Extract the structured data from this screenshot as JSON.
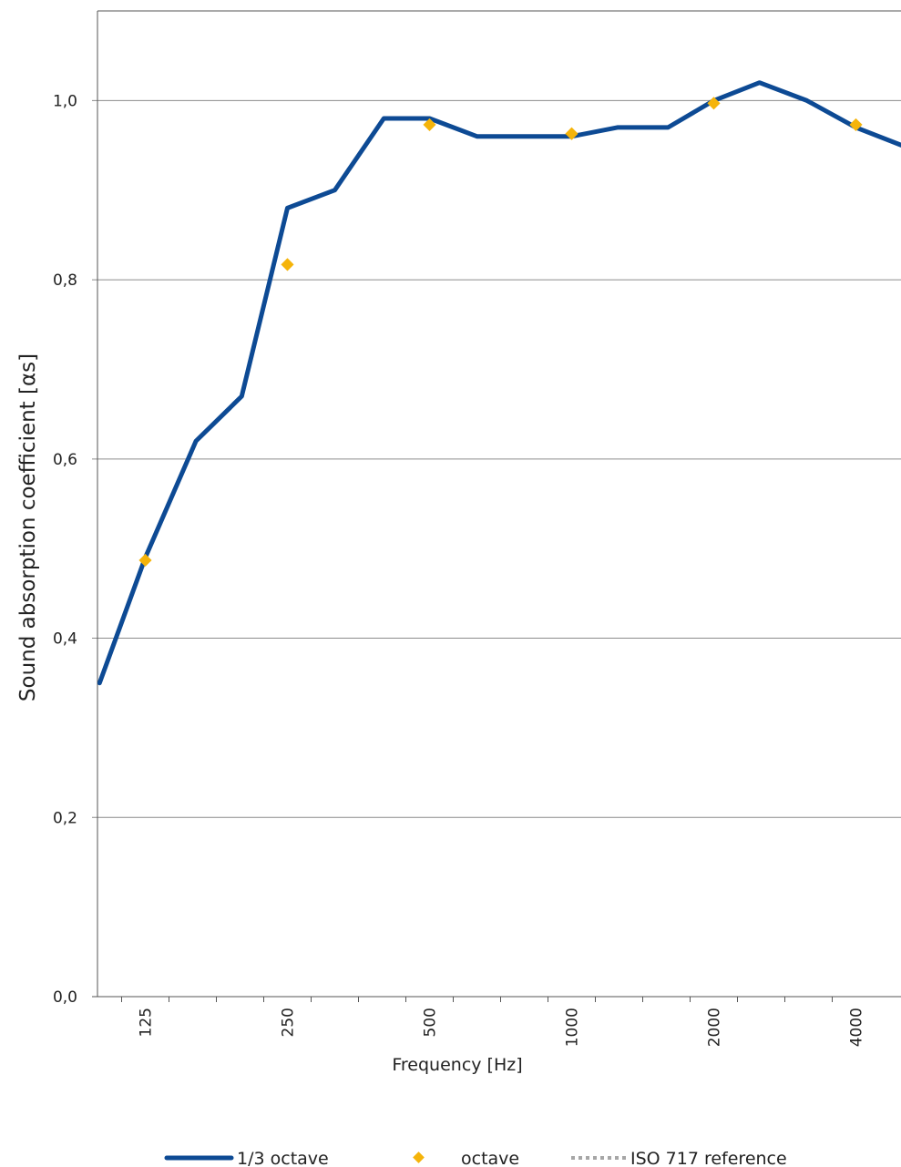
{
  "chart_data": {
    "type": "line",
    "xlabel": "Frequency [Hz]",
    "ylabel": "Sound absorption coefficient [αs]",
    "x_scale": "log",
    "ylim": [
      0,
      1.1
    ],
    "yticks": [
      "0,0",
      "0,2",
      "0,4",
      "0,6",
      "0,8",
      "1,0"
    ],
    "ytick_values": [
      0,
      0.2,
      0.4,
      0.6,
      0.8,
      1.0
    ],
    "xtick_labels": [
      "125",
      "250",
      "500",
      "1000",
      "2000",
      "4000"
    ],
    "xtick_values": [
      125,
      250,
      500,
      1000,
      2000,
      4000
    ],
    "grid": true,
    "legend_position": "bottom",
    "series": [
      {
        "name": "1/3 octave",
        "style": "line",
        "color": "#0D4A94",
        "x": [
          100,
          125,
          160,
          200,
          250,
          315,
          400,
          500,
          630,
          800,
          1000,
          1250,
          1600,
          2000,
          2500,
          3150,
          4000,
          5000
        ],
        "values": [
          0.35,
          0.49,
          0.62,
          0.67,
          0.88,
          0.9,
          0.98,
          0.98,
          0.96,
          0.96,
          0.96,
          0.97,
          0.97,
          1.0,
          1.02,
          1.0,
          0.97,
          0.95
        ]
      },
      {
        "name": "octave",
        "style": "marker",
        "color": "#F5B40A",
        "x": [
          125,
          250,
          500,
          1000,
          2000,
          4000
        ],
        "values": [
          0.487,
          0.817,
          0.973,
          0.963,
          0.997,
          0.973
        ]
      },
      {
        "name": "ISO 717 reference",
        "style": "dotted",
        "color": "#A6A6A6",
        "x": [],
        "values": []
      }
    ]
  }
}
